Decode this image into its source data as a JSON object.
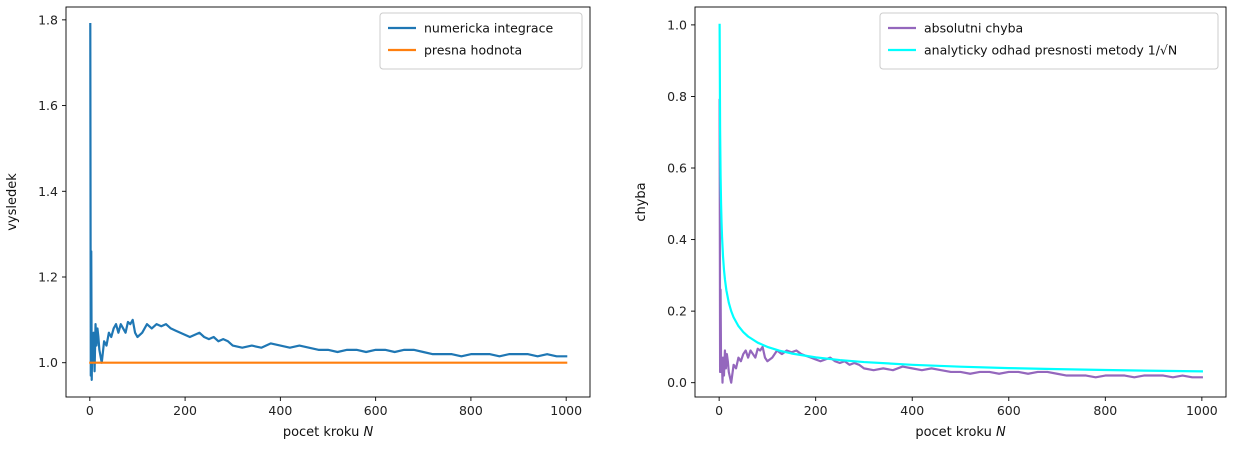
{
  "chart_data": [
    {
      "type": "line",
      "xlabel": "pocet kroku N",
      "ylabel": "vysledek",
      "xlim": [
        -50,
        1050
      ],
      "ylim": [
        0.92,
        1.83
      ],
      "xticks": [
        0,
        200,
        400,
        600,
        800,
        1000
      ],
      "yticks": [
        1.0,
        1.2,
        1.4,
        1.6,
        1.8
      ],
      "ytick_format": 1,
      "legend": "top-right",
      "grid": false,
      "series": [
        {
          "name": "numericka integrace",
          "color": "#1f77b4",
          "x": [
            1,
            2,
            3,
            4,
            5,
            6,
            7,
            8,
            9,
            10,
            12,
            14,
            16,
            18,
            20,
            25,
            30,
            35,
            40,
            45,
            50,
            55,
            60,
            65,
            70,
            75,
            80,
            85,
            90,
            95,
            100,
            110,
            120,
            130,
            140,
            150,
            160,
            170,
            180,
            190,
            200,
            210,
            220,
            230,
            240,
            250,
            260,
            270,
            280,
            290,
            300,
            320,
            340,
            360,
            380,
            400,
            420,
            440,
            460,
            480,
            500,
            520,
            540,
            560,
            580,
            600,
            620,
            640,
            660,
            680,
            700,
            720,
            740,
            760,
            780,
            800,
            820,
            840,
            860,
            880,
            900,
            920,
            940,
            960,
            980,
            1000
          ],
          "y": [
            1.79,
            0.97,
            1.26,
            0.96,
            1.03,
            1.05,
            1.0,
            1.07,
            1.02,
            0.98,
            1.09,
            1.04,
            1.08,
            1.06,
            1.03,
            1.0,
            1.05,
            1.04,
            1.07,
            1.06,
            1.08,
            1.09,
            1.07,
            1.09,
            1.08,
            1.07,
            1.095,
            1.09,
            1.1,
            1.07,
            1.06,
            1.07,
            1.09,
            1.08,
            1.09,
            1.085,
            1.09,
            1.08,
            1.075,
            1.07,
            1.065,
            1.06,
            1.065,
            1.07,
            1.06,
            1.055,
            1.06,
            1.05,
            1.055,
            1.05,
            1.04,
            1.035,
            1.04,
            1.035,
            1.045,
            1.04,
            1.035,
            1.04,
            1.035,
            1.03,
            1.03,
            1.025,
            1.03,
            1.03,
            1.025,
            1.03,
            1.03,
            1.025,
            1.03,
            1.03,
            1.025,
            1.02,
            1.02,
            1.02,
            1.015,
            1.02,
            1.02,
            1.02,
            1.015,
            1.02,
            1.02,
            1.02,
            1.015,
            1.02,
            1.015,
            1.015
          ]
        },
        {
          "name": "presna hodnota",
          "color": "#ff7f0e",
          "x": [
            1,
            1000
          ],
          "y": [
            1.0,
            1.0
          ]
        }
      ]
    },
    {
      "type": "line",
      "xlabel": "pocet kroku N",
      "ylabel": "chyba",
      "xlim": [
        -50,
        1050
      ],
      "ylim": [
        -0.04,
        1.05
      ],
      "xticks": [
        0,
        200,
        400,
        600,
        800,
        1000
      ],
      "yticks": [
        0.0,
        0.2,
        0.4,
        0.6,
        0.8,
        1.0
      ],
      "ytick_format": 1,
      "legend": "top-right",
      "grid": false,
      "series": [
        {
          "name": "absolutni chyba",
          "color": "#9467bd",
          "x": [
            1,
            2,
            3,
            4,
            5,
            6,
            7,
            8,
            9,
            10,
            12,
            14,
            16,
            18,
            20,
            25,
            30,
            35,
            40,
            45,
            50,
            55,
            60,
            65,
            70,
            75,
            80,
            85,
            90,
            95,
            100,
            110,
            120,
            130,
            140,
            150,
            160,
            170,
            180,
            190,
            200,
            210,
            220,
            230,
            240,
            250,
            260,
            270,
            280,
            290,
            300,
            320,
            340,
            360,
            380,
            400,
            420,
            440,
            460,
            480,
            500,
            520,
            540,
            560,
            580,
            600,
            620,
            640,
            660,
            680,
            700,
            720,
            740,
            760,
            780,
            800,
            820,
            840,
            860,
            880,
            900,
            920,
            940,
            960,
            980,
            1000
          ],
          "y": [
            0.79,
            0.03,
            0.26,
            0.04,
            0.03,
            0.05,
            0.0,
            0.07,
            0.02,
            0.02,
            0.09,
            0.04,
            0.08,
            0.06,
            0.03,
            0.0,
            0.05,
            0.04,
            0.07,
            0.06,
            0.08,
            0.09,
            0.07,
            0.09,
            0.08,
            0.07,
            0.095,
            0.09,
            0.1,
            0.07,
            0.06,
            0.07,
            0.09,
            0.08,
            0.09,
            0.085,
            0.09,
            0.08,
            0.075,
            0.07,
            0.065,
            0.06,
            0.065,
            0.07,
            0.06,
            0.055,
            0.06,
            0.05,
            0.055,
            0.05,
            0.04,
            0.035,
            0.04,
            0.035,
            0.045,
            0.04,
            0.035,
            0.04,
            0.035,
            0.03,
            0.03,
            0.025,
            0.03,
            0.03,
            0.025,
            0.03,
            0.03,
            0.025,
            0.03,
            0.03,
            0.025,
            0.02,
            0.02,
            0.02,
            0.015,
            0.02,
            0.02,
            0.02,
            0.015,
            0.02,
            0.02,
            0.02,
            0.015,
            0.02,
            0.015,
            0.015
          ]
        },
        {
          "name": "analyticky odhad presnosti metody 1/√N",
          "color": "#00ffff",
          "x": [
            1,
            2,
            3,
            4,
            5,
            6,
            8,
            10,
            12,
            15,
            20,
            25,
            30,
            40,
            50,
            60,
            80,
            100,
            125,
            150,
            200,
            250,
            300,
            400,
            500,
            600,
            700,
            800,
            900,
            1000
          ],
          "y": [
            1.0,
            0.7071,
            0.5774,
            0.5,
            0.4472,
            0.4082,
            0.3536,
            0.3162,
            0.2887,
            0.2582,
            0.2236,
            0.2,
            0.1826,
            0.1581,
            0.1414,
            0.1291,
            0.1118,
            0.1,
            0.0894,
            0.0816,
            0.0707,
            0.0632,
            0.0577,
            0.05,
            0.0447,
            0.0408,
            0.0378,
            0.0354,
            0.0333,
            0.0316
          ]
        }
      ]
    }
  ]
}
